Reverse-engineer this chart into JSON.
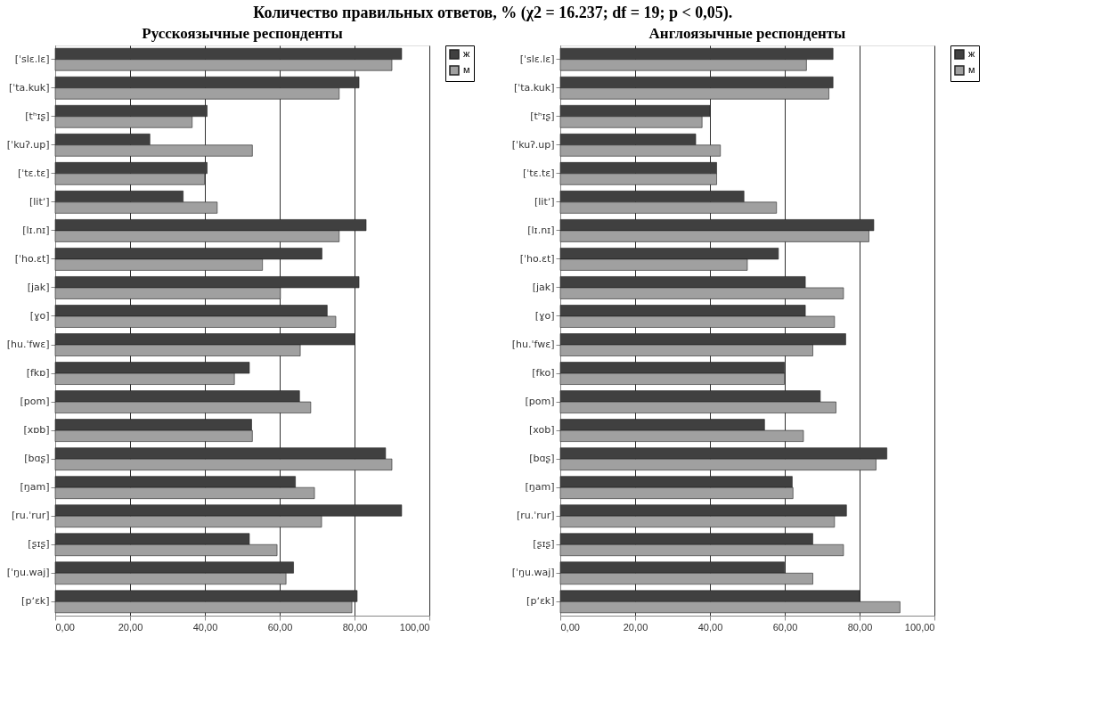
{
  "chart_data": [
    {
      "type": "bar",
      "orientation": "horizontal",
      "title": "Количество правильных ответов, % (χ2 = 16.237; df = 19; p < 0,05).",
      "subtitle": "Русскоязычные респонденты",
      "categories": [
        "[ˈslɛ.lɛ]",
        "[ˈta.kuk]",
        "[tʰɪʂ]",
        "[ˈkuʔ.up]",
        "[ˈtɛ.tɛ]",
        "[litʼ]",
        "[lɪ.nɪ]",
        "[ˈho.ɛt]",
        "[jak]",
        "[ɣo]",
        "[hu.ˈfwɛ]",
        "[fkɒ]",
        "[pom]",
        "[xɒb]",
        "[bɑʂ]",
        "[ŋam]",
        "[ru.ˈrur]",
        "[ʂɪʂ]",
        "[ˈŋu.waj]",
        "[pʼɛk]"
      ],
      "series": [
        {
          "name": "ж",
          "color": "#404040",
          "values": [
            92.6,
            81.2,
            40.6,
            25.3,
            40.6,
            34.2,
            83.1,
            71.3,
            81.2,
            72.7,
            80.1,
            51.9,
            65.3,
            52.5,
            88.3,
            64.2,
            92.6,
            51.9,
            63.7,
            80.7
          ]
        },
        {
          "name": "м",
          "color": "#a0a0a0",
          "values": [
            90.0,
            75.9,
            36.6,
            52.7,
            39.9,
            43.3,
            75.9,
            55.4,
            60.2,
            75.0,
            65.5,
            47.9,
            68.3,
            52.7,
            90.0,
            69.3,
            71.2,
            59.3,
            61.7,
            79.3
          ]
        }
      ],
      "xlim": [
        0,
        100
      ],
      "xticks": [
        {
          "value": 0,
          "label": "0,00"
        },
        {
          "value": 20,
          "label": "20,00"
        },
        {
          "value": 40,
          "label": "40,00"
        },
        {
          "value": 60,
          "label": "60,00"
        },
        {
          "value": 80,
          "label": "80,00"
        },
        {
          "value": 100,
          "label": "100,00"
        }
      ],
      "grid": "x",
      "legend": "right"
    },
    {
      "type": "bar",
      "orientation": "horizontal",
      "subtitle": "Англоязычные респонденты",
      "categories": [
        "[ˈslɛ.lɛ]",
        "[ˈta.kuk]",
        "[tʰɪʂ]",
        "[ˈkuʔ.up]",
        "[ˈtɛ.tɛ]",
        "[litʼ]",
        "[lɪ.nɪ]",
        "[ˈho.ɛt]",
        "[jak]",
        "[ɣo]",
        "[hu.ˈfwɛ]",
        "[fko]",
        "[pom]",
        "[xob]",
        "[bɑʂ]",
        "[ŋam]",
        "[ru.ˈrur]",
        "[ʂɪʂ]",
        "[ˈŋu.waj]",
        "[pʼɛk]"
      ],
      "series": [
        {
          "name": "ж",
          "color": "#404040",
          "values": [
            72.9,
            72.9,
            40.0,
            36.2,
            41.8,
            49.1,
            83.8,
            58.3,
            65.5,
            65.5,
            76.3,
            59.9,
            69.5,
            54.6,
            87.3,
            62.0,
            76.5,
            67.5,
            59.9,
            80.0
          ]
        },
        {
          "name": "м",
          "color": "#a0a0a0",
          "values": [
            65.8,
            71.8,
            37.9,
            42.8,
            41.8,
            57.8,
            82.5,
            50.0,
            75.7,
            73.3,
            67.5,
            59.9,
            73.7,
            65.0,
            84.4,
            62.2,
            73.3,
            75.7,
            67.5,
            90.8
          ]
        }
      ],
      "xlim": [
        0,
        100
      ],
      "xticks": [
        {
          "value": 0,
          "label": "0,00"
        },
        {
          "value": 20,
          "label": "20,00"
        },
        {
          "value": 40,
          "label": "40,00"
        },
        {
          "value": 60,
          "label": "60,00"
        },
        {
          "value": 80,
          "label": "80,00"
        },
        {
          "value": 100,
          "label": "100,00"
        }
      ],
      "grid": "x",
      "legend": "right"
    }
  ]
}
